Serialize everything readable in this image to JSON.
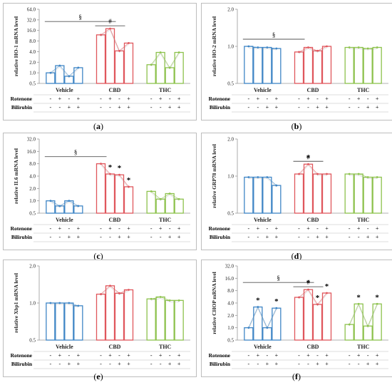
{
  "groups": [
    "Vehicle",
    "CBD",
    "THC"
  ],
  "row_labels": {
    "rotenone": "Rotenone",
    "bilirubin": "Bilirubin"
  },
  "rotenone_signs": [
    "-",
    "+",
    "-",
    "+",
    "-",
    "+",
    "-",
    "+",
    "-",
    "+",
    "-",
    "+"
  ],
  "bilirubin_signs": [
    "-",
    "-",
    "+",
    "+",
    "-",
    "-",
    "+",
    "+",
    "-",
    "-",
    "+",
    "+"
  ],
  "colors": {
    "Vehicle": "#3f86c6",
    "CBD": "#e0575d",
    "THC": "#8dc24d",
    "bracket": "#555555"
  },
  "chart_data": [
    {
      "panel": "a",
      "caption": "a",
      "type": "bar",
      "log": true,
      "ylabel": "relative HO-1 mRNA level",
      "yticks": [
        "0.5",
        "1.0",
        "2.0",
        "4.0",
        "8.0",
        "16.0",
        "32.0",
        "64.0"
      ],
      "ylim": [
        0.5,
        64
      ],
      "values": [
        1.0,
        1.6,
        0.8,
        1.4,
        12,
        18,
        4.2,
        7,
        1.7,
        3.8,
        1.4,
        3.8
      ],
      "stars": [],
      "brackets": [
        {
          "from": 0,
          "to": 5,
          "symbol": "§"
        },
        {
          "from": 4,
          "to": 6,
          "symbol": "#"
        }
      ]
    },
    {
      "panel": "b",
      "caption": "b",
      "type": "bar",
      "log": true,
      "ylabel": "relative HO-2 mRNA level",
      "yticks": [
        "0.5",
        "1.0",
        "2.0"
      ],
      "ylim": [
        0.5,
        2
      ],
      "values": [
        1.0,
        0.98,
        0.98,
        0.96,
        0.9,
        0.98,
        0.92,
        1.0,
        0.98,
        0.98,
        0.96,
        0.98
      ],
      "stars": [],
      "brackets": [
        {
          "from": 0,
          "to": 4,
          "symbol": "§"
        }
      ]
    },
    {
      "panel": "c",
      "caption": "c",
      "type": "bar",
      "log": true,
      "ylabel": "relative IL6 mRNA level",
      "yticks": [
        "0.5",
        "1.0",
        "2.0",
        "4.0",
        "8.0",
        "16.0",
        "32.0"
      ],
      "ylim": [
        0.5,
        32
      ],
      "values": [
        1.0,
        0.75,
        1.0,
        0.75,
        8,
        4.5,
        4.3,
        2.2,
        1.7,
        1.1,
        1.5,
        1.1
      ],
      "stars": [
        5,
        6,
        7
      ],
      "brackets": [
        {
          "from": 0,
          "to": 4,
          "symbol": "§"
        }
      ]
    },
    {
      "panel": "d",
      "caption": "d",
      "type": "bar",
      "log": true,
      "ylabel": "relative GRP78 mRNA level",
      "yticks": [
        "0.5",
        "1.0",
        "2.0"
      ],
      "ylim": [
        0.5,
        2
      ],
      "values": [
        0.98,
        0.98,
        0.98,
        0.84,
        1.04,
        1.25,
        1.04,
        1.04,
        1.04,
        1.04,
        0.98,
        0.98
      ],
      "stars": [
        5
      ],
      "brackets": [
        {
          "from": 4,
          "to": 6,
          "symbol": "#"
        }
      ]
    },
    {
      "panel": "e",
      "caption": "e",
      "type": "bar",
      "log": true,
      "ylabel": "relative Xbp1 mRNA level",
      "yticks": [
        "0.5",
        "1.0",
        "2.0"
      ],
      "ylim": [
        0.5,
        2
      ],
      "values": [
        1.0,
        1.0,
        1.0,
        0.95,
        1.18,
        1.38,
        1.2,
        1.28,
        1.08,
        1.12,
        1.05,
        1.05
      ],
      "stars": [],
      "brackets": []
    },
    {
      "panel": "f",
      "caption": "f",
      "type": "bar",
      "log": true,
      "ylabel": "relative CHOP mRNA level",
      "yticks": [
        "0.5",
        "1.0",
        "2.0",
        "4.0",
        "8.0",
        "16.0",
        "32.0"
      ],
      "ylim": [
        0.5,
        32
      ],
      "values": [
        1.0,
        3.2,
        1.0,
        3.0,
        5.5,
        8.5,
        3.7,
        7,
        1.2,
        3.8,
        1.1,
        3.8
      ],
      "stars": [
        1,
        3,
        5,
        6,
        7,
        9,
        11
      ],
      "brackets": [
        {
          "from": 0,
          "to": 5,
          "symbol": "§"
        },
        {
          "from": 4,
          "to": 6,
          "symbol": "#"
        }
      ]
    }
  ]
}
